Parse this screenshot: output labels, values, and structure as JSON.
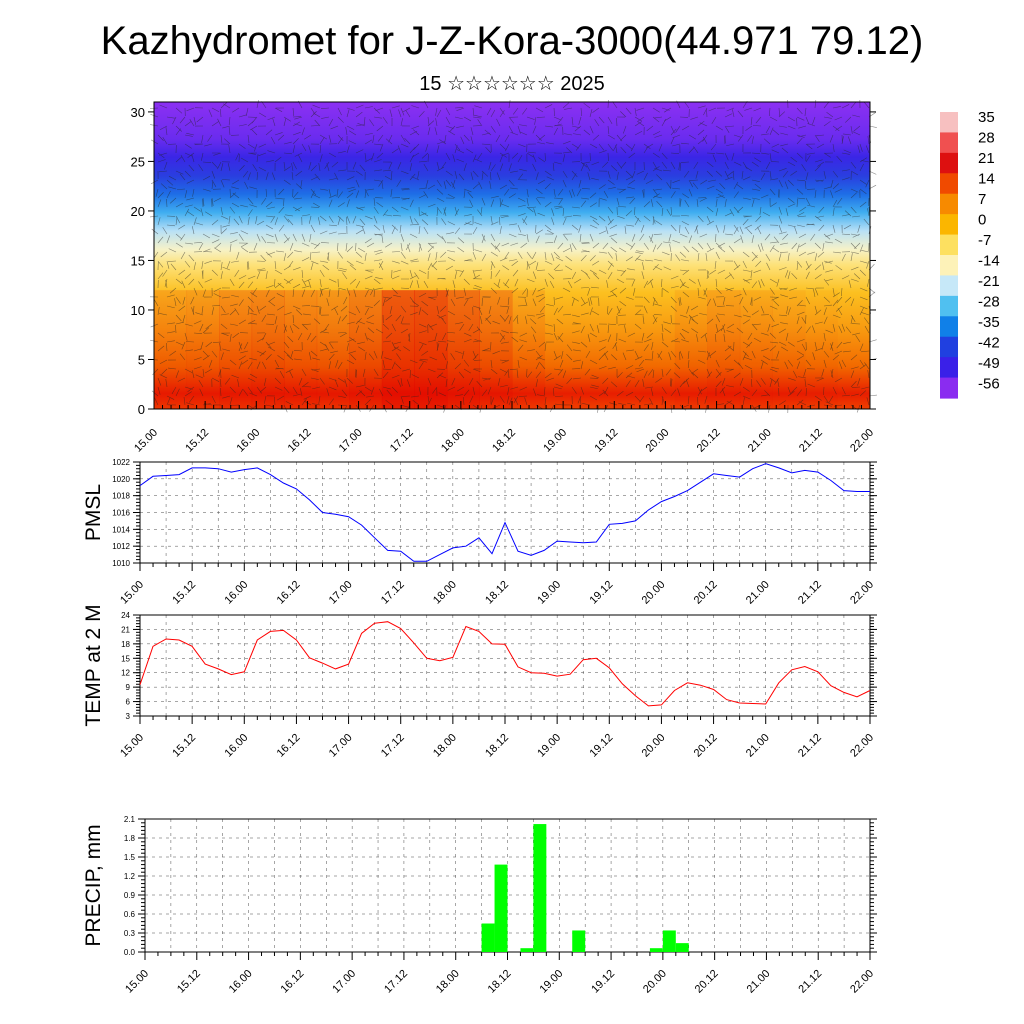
{
  "page": {
    "title": "Kazhydromet for J-Z-Kora-3000(44.971 79.12)",
    "subtitle": "15 ☆☆☆☆☆☆ 2025"
  },
  "colors": {
    "pmsl_line": "#0000ff",
    "temp_line": "#ff0000",
    "precip_bar": "#00ff00",
    "grid": "#000000"
  },
  "chart_data": [
    {
      "id": "section",
      "type": "heatmap",
      "title": "",
      "xlabel": "",
      "ylabel": "",
      "x_ticks": [
        "15.00",
        "15.12",
        "16.00",
        "16.12",
        "17.00",
        "17.12",
        "18.00",
        "18.12",
        "19.00",
        "19.12",
        "20.00",
        "20.12",
        "21.00",
        "21.12",
        "22.00"
      ],
      "y_ticks": [
        0,
        5,
        10,
        15,
        20,
        25,
        30
      ],
      "ylim": [
        0,
        31
      ],
      "colorbar_labels": [
        "35",
        "28",
        "21",
        "14",
        "7",
        "0",
        "-7",
        "-14",
        "-21",
        "-28",
        "-35",
        "-42",
        "-49",
        "-56"
      ],
      "colorbar_colors": [
        "#f7c0c0",
        "#f05050",
        "#dd1010",
        "#f04a00",
        "#f78a00",
        "#fbb600",
        "#fde060",
        "#fdf2b8",
        "#c6e8f8",
        "#50c0f0",
        "#1080e8",
        "#2040e0",
        "#3a20e8",
        "#8a2cf0"
      ],
      "surface_profile": [
        {
          "level": 0,
          "values": [
            22,
            23,
            25,
            26,
            25,
            24,
            27,
            33,
            34,
            30,
            26,
            21,
            18,
            15,
            14,
            17,
            20,
            22,
            21,
            20,
            19,
            18
          ]
        },
        {
          "level": 5,
          "values": [
            17,
            18,
            20,
            21,
            21,
            20,
            22,
            27,
            29,
            26,
            22,
            18,
            15,
            13,
            12,
            14,
            17,
            19,
            18,
            17,
            16,
            15
          ]
        },
        {
          "level": 10,
          "values": [
            8,
            9,
            11,
            12,
            12,
            12,
            13,
            16,
            17,
            15,
            13,
            10,
            8,
            7,
            6,
            8,
            10,
            12,
            11,
            10,
            9,
            8
          ]
        },
        {
          "level": 15,
          "values": [
            -4,
            -3,
            -2,
            -1,
            -1,
            -1,
            0,
            2,
            2,
            1,
            0,
            -2,
            -4,
            -5,
            -6,
            -5,
            -4,
            -3,
            -3,
            -4,
            -5,
            -6
          ]
        },
        {
          "level": 20,
          "values": [
            -24,
            -23,
            -22,
            -21,
            -21,
            -21,
            -20,
            -19,
            -19,
            -20,
            -21,
            -22,
            -23,
            -24,
            -25,
            -24,
            -24,
            -23,
            -24,
            -24,
            -25,
            -26
          ]
        },
        {
          "level": 25,
          "values": [
            -50,
            -49,
            -48,
            -47,
            -47,
            -47,
            -46,
            -45,
            -46,
            -47,
            -48,
            -49,
            -50,
            -51,
            -52,
            -51,
            -51,
            -50,
            -51,
            -51,
            -52,
            -53
          ]
        },
        {
          "level": 31,
          "values": [
            -58,
            -58,
            -57,
            -57,
            -57,
            -57,
            -56,
            -56,
            -56,
            -57,
            -57,
            -58,
            -58,
            -58,
            -59,
            -58,
            -58,
            -58,
            -58,
            -58,
            -59,
            -59
          ]
        }
      ]
    },
    {
      "id": "pmsl",
      "type": "line",
      "ylabel": "PMSL",
      "x_ticks": [
        "15.00",
        "15.12",
        "16.00",
        "16.12",
        "17.00",
        "17.12",
        "18.00",
        "18.12",
        "19.00",
        "19.12",
        "20.00",
        "20.12",
        "21.00",
        "21.12",
        "22.00"
      ],
      "y_ticks": [
        1010,
        1012,
        1014,
        1016,
        1018,
        1020,
        1022
      ],
      "ylim": [
        1010,
        1022
      ],
      "x_hours": [
        0,
        3,
        6,
        9,
        12,
        15,
        18,
        21,
        24,
        27,
        30,
        33,
        36,
        39,
        42,
        45,
        48,
        51,
        54,
        57,
        60,
        63,
        66,
        69,
        72,
        75,
        78,
        81,
        84,
        87,
        90,
        93,
        96,
        99,
        102,
        105,
        108,
        111,
        114,
        117,
        120,
        123,
        126,
        129,
        132,
        135,
        138,
        141,
        144,
        147,
        150,
        153,
        156,
        159,
        162,
        165,
        168
      ],
      "values": [
        1019.2,
        1020.3,
        1020.4,
        1020.5,
        1021.3,
        1021.3,
        1021.2,
        1020.8,
        1021.1,
        1021.3,
        1020.5,
        1019.5,
        1018.8,
        1017.5,
        1016,
        1015.8,
        1015.5,
        1014.5,
        1013,
        1011.5,
        1011.4,
        1010.2,
        1010.2,
        1011,
        1011.8,
        1012,
        1013,
        1011.1,
        1014.8,
        1011.4,
        1010.9,
        1011.5,
        1012.6,
        1012.5,
        1012.4,
        1012.5,
        1014.6,
        1014.7,
        1015,
        1016.3,
        1017.3,
        1017.9,
        1018.6,
        1019.6,
        1020.6,
        1020.4,
        1020.2,
        1021.2,
        1021.8,
        1021.3,
        1020.7,
        1021,
        1020.8,
        1019.8,
        1018.6,
        1018.5,
        1018.5
      ]
    },
    {
      "id": "temp",
      "type": "line",
      "ylabel": "TEMP at 2 M",
      "x_ticks": [
        "15.00",
        "15.12",
        "16.00",
        "16.12",
        "17.00",
        "17.12",
        "18.00",
        "18.12",
        "19.00",
        "19.12",
        "20.00",
        "20.12",
        "21.00",
        "21.12",
        "22.00"
      ],
      "y_ticks": [
        3,
        6,
        9,
        12,
        15,
        18,
        21,
        24
      ],
      "ylim": [
        3,
        24
      ],
      "x_hours": [
        0,
        3,
        6,
        9,
        12,
        15,
        18,
        21,
        24,
        27,
        30,
        33,
        36,
        39,
        42,
        45,
        48,
        51,
        54,
        57,
        60,
        63,
        66,
        69,
        72,
        75,
        78,
        81,
        84,
        87,
        90,
        93,
        96,
        99,
        102,
        105,
        108,
        111,
        114,
        117,
        120,
        123,
        126,
        129,
        132,
        135,
        138,
        141,
        144,
        147,
        150,
        153,
        156,
        159,
        162,
        165,
        168
      ],
      "values": [
        9.5,
        17.5,
        19,
        18.8,
        17.5,
        13.8,
        12.8,
        11.6,
        12.2,
        18.8,
        20.6,
        20.8,
        18.8,
        15.1,
        14,
        12.8,
        13.8,
        20.2,
        22.3,
        22.6,
        21.2,
        18.2,
        15,
        14.5,
        15.2,
        21.6,
        20.6,
        18,
        17.9,
        13.2,
        12,
        11.9,
        11.3,
        11.7,
        14.7,
        15,
        13,
        9.7,
        7.2,
        5.1,
        5.3,
        8.3,
        9.9,
        9.4,
        8.5,
        6.4,
        5.7,
        5.6,
        5.5,
        9.9,
        12.6,
        13.3,
        12.2,
        9.3,
        7.9,
        7,
        8.3
      ]
    },
    {
      "id": "precip",
      "type": "bar",
      "ylabel": "PRECIP, mm",
      "x_ticks": [
        "15.00",
        "15.12",
        "16.00",
        "16.12",
        "17.00",
        "17.12",
        "18.00",
        "18.12",
        "19.00",
        "19.12",
        "20.00",
        "20.12",
        "21.00",
        "21.12",
        "22.00"
      ],
      "y_ticks": [
        "0.0",
        "0.3",
        "0.6",
        "0.9",
        "1.2",
        "1.5",
        "1.8",
        "2.1"
      ],
      "ylim": [
        0,
        2.1
      ],
      "bars": [
        {
          "start_hour": 78,
          "end_hour": 81,
          "value": 0.45
        },
        {
          "start_hour": 81,
          "end_hour": 84,
          "value": 1.38
        },
        {
          "start_hour": 87,
          "end_hour": 90,
          "value": 0.06
        },
        {
          "start_hour": 90,
          "end_hour": 93,
          "value": 2.02
        },
        {
          "start_hour": 99,
          "end_hour": 102,
          "value": 0.34
        },
        {
          "start_hour": 117,
          "end_hour": 120,
          "value": 0.06
        },
        {
          "start_hour": 120,
          "end_hour": 123,
          "value": 0.34
        },
        {
          "start_hour": 123,
          "end_hour": 126,
          "value": 0.14
        }
      ]
    }
  ]
}
